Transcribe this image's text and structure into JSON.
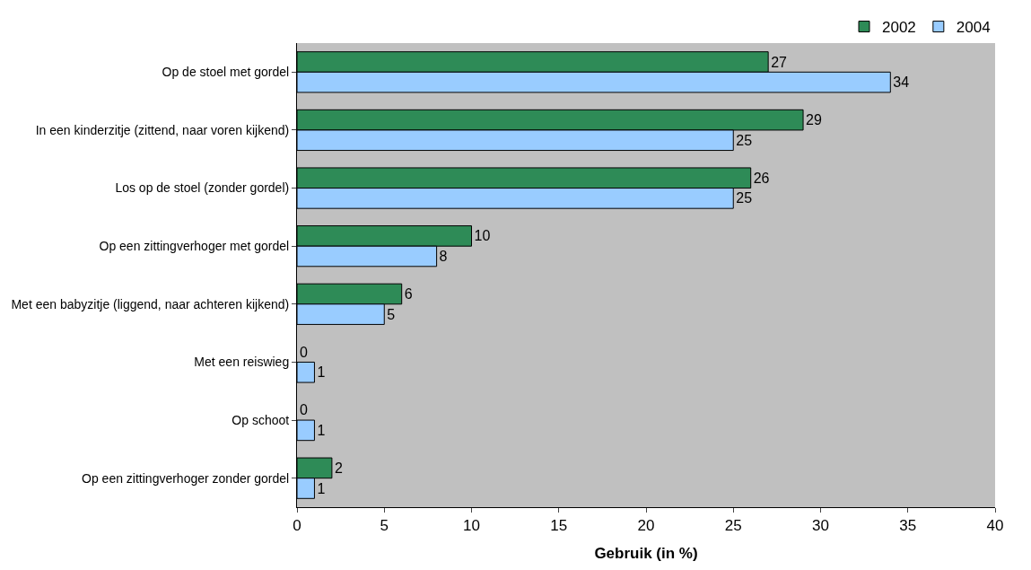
{
  "chart_data": {
    "type": "bar",
    "orientation": "horizontal",
    "xlabel": "Gebruik (in %)",
    "categories": [
      "Op de stoel met gordel",
      "In een kinderzitje (zittend, naar voren kijkend)",
      "Los op de stoel (zonder gordel)",
      "Op een zittingverhoger met gordel",
      "Met een babyzitje (liggend, naar achteren kijkend)",
      "Met een reiswieg",
      "Op schoot",
      "Op een zittingverhoger zonder gordel"
    ],
    "series": [
      {
        "name": "2002",
        "color": "#2e8b57",
        "values": [
          27,
          29,
          26,
          10,
          6,
          0,
          0,
          2
        ]
      },
      {
        "name": "2004",
        "color": "#99ccff",
        "values": [
          34,
          25,
          25,
          8,
          5,
          1,
          1,
          1
        ]
      }
    ],
    "xlim": [
      0,
      40
    ],
    "xticks": [
      0,
      5,
      10,
      15,
      20,
      25,
      30,
      35,
      40
    ],
    "data_labels": true,
    "grid": false,
    "legend": "top right"
  }
}
